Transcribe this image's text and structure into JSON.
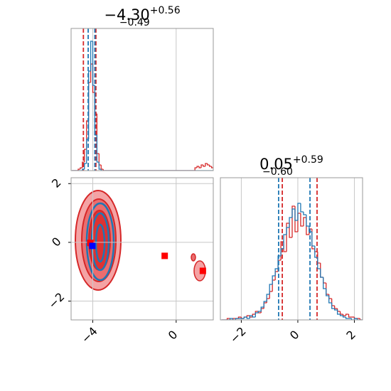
{
  "chart_data": [
    {
      "type": "histogram",
      "title": {
        "value": "−4.30",
        "upper": "+0.56",
        "lower": "−0.49"
      },
      "xlim": [
        -5.04,
        1.78
      ],
      "ylim": [
        0,
        100
      ],
      "bins": [
        -5.0,
        -4.9,
        -4.8,
        -4.7,
        -4.6,
        -4.5,
        -4.4,
        -4.3,
        -4.2,
        -4.1,
        -4.0,
        -3.9,
        -3.8,
        -3.7,
        -3.6,
        -3.5,
        -3.4,
        -3.3,
        -3.2,
        -3.1,
        -3.0,
        -2.9,
        -2.8,
        -2.7,
        -2.6,
        -2.5,
        -2.4,
        -2.3,
        -2.2,
        -2.1,
        -2.0,
        -1.9,
        -1.8,
        -1.7,
        -1.6,
        -1.5,
        -1.4,
        -1.3,
        -1.2,
        -1.1,
        -1.0,
        -0.9,
        -0.8,
        -0.7,
        -0.6,
        -0.5,
        -0.4,
        -0.3,
        -0.2,
        -0.1,
        0.0,
        0.1,
        0.2,
        0.3,
        0.4,
        0.5,
        0.6,
        0.7,
        0.8,
        0.9,
        1.0,
        1.1,
        1.2,
        1.3,
        1.4,
        1.5,
        1.6,
        1.7,
        1.8
      ],
      "series": [
        {
          "color": "#d62728",
          "quantiles": [
            -4.45,
            -3.85
          ],
          "values": [
            0,
            0,
            0,
            1,
            2,
            6,
            15,
            35,
            62,
            75,
            55,
            40,
            12,
            4,
            1,
            0,
            0,
            0,
            0,
            0,
            0,
            0,
            0,
            0,
            0,
            0,
            0,
            0,
            0,
            0,
            0,
            0,
            0,
            0,
            0,
            0,
            0,
            0,
            0,
            0,
            0,
            0,
            0,
            0,
            0,
            0,
            0,
            0,
            0,
            0,
            0,
            0,
            0,
            0,
            0,
            0,
            0,
            0,
            0,
            2,
            3,
            2,
            4,
            3,
            5,
            4,
            3,
            2
          ]
        },
        {
          "color": "#1f77b4",
          "quantiles": [
            -4.22,
            -3.9
          ],
          "values": [
            0,
            0,
            0,
            0,
            0,
            1,
            5,
            22,
            70,
            91,
            60,
            25,
            6,
            1,
            0,
            0,
            0,
            0,
            0,
            0,
            0,
            0,
            0,
            0,
            0,
            0,
            0,
            0,
            0,
            0,
            0,
            0,
            0,
            0,
            0,
            0,
            0,
            0,
            0,
            0,
            0,
            0,
            0,
            0,
            0,
            0,
            0,
            0,
            0,
            0,
            0,
            0,
            0,
            0,
            0,
            0,
            0,
            0,
            0,
            0,
            0,
            0,
            0,
            0,
            0,
            0,
            0,
            0
          ]
        }
      ]
    },
    {
      "type": "scatter",
      "xlim": [
        -5.04,
        1.78
      ],
      "ylim": [
        -2.64,
        2.2
      ],
      "xticks": [
        {
          "value": -4,
          "label": "−4"
        },
        0
      ],
      "yticks": [
        {
          "value": -2,
          "label": "−2"
        },
        0,
        2
      ],
      "series": [
        {
          "color": "#ff0000",
          "x": [
            -4.12,
            -0.55,
            1.28
          ],
          "y": [
            -0.02,
            -0.46,
            -0.97
          ]
        },
        {
          "color": "#0000ff",
          "x": [
            -4.02
          ],
          "y": [
            -0.12
          ]
        }
      ]
    },
    {
      "type": "histogram",
      "title": {
        "value": "0.05",
        "upper": "+0.59",
        "lower": "−0.60"
      },
      "xlim": [
        -2.74,
        2.29
      ],
      "ylim": [
        0,
        100
      ],
      "xticks": [
        {
          "value": -2,
          "label": "−2"
        },
        0,
        2
      ],
      "bins": [
        -2.7,
        -2.6,
        -2.5,
        -2.4,
        -2.3,
        -2.2,
        -2.1,
        -2.0,
        -1.9,
        -1.8,
        -1.7,
        -1.6,
        -1.5,
        -1.4,
        -1.3,
        -1.2,
        -1.1,
        -1.0,
        -0.9,
        -0.8,
        -0.7,
        -0.6,
        -0.5,
        -0.4,
        -0.3,
        -0.2,
        -0.1,
        0.0,
        0.1,
        0.2,
        0.3,
        0.4,
        0.5,
        0.6,
        0.7,
        0.8,
        0.9,
        1.0,
        1.1,
        1.2,
        1.3,
        1.4,
        1.5,
        1.6,
        1.7,
        1.8,
        1.9,
        2.0,
        2.1,
        2.2,
        2.3
      ],
      "series": [
        {
          "color": "#d62728",
          "quantiles": [
            -0.55,
            0.68
          ],
          "values": [
            0,
            0,
            1,
            0,
            1,
            1,
            2,
            1,
            2,
            3,
            2,
            4,
            6,
            5,
            8,
            12,
            15,
            20,
            28,
            34,
            42,
            55,
            48,
            68,
            58,
            80,
            62,
            75,
            66,
            72,
            60,
            64,
            50,
            48,
            40,
            30,
            26,
            18,
            15,
            10,
            8,
            6,
            4,
            3,
            4,
            2,
            2,
            1,
            1,
            0
          ]
        },
        {
          "color": "#1f77b4",
          "quantiles": [
            -0.68,
            0.43
          ],
          "values": [
            0,
            0,
            0,
            1,
            0,
            1,
            1,
            1,
            2,
            1,
            3,
            2,
            5,
            6,
            9,
            13,
            18,
            25,
            31,
            36,
            45,
            50,
            60,
            65,
            72,
            78,
            70,
            82,
            76,
            74,
            66,
            62,
            52,
            44,
            36,
            30,
            22,
            17,
            12,
            8,
            7,
            4,
            3,
            2,
            1,
            1,
            0,
            1,
            0,
            0
          ]
        }
      ]
    }
  ]
}
